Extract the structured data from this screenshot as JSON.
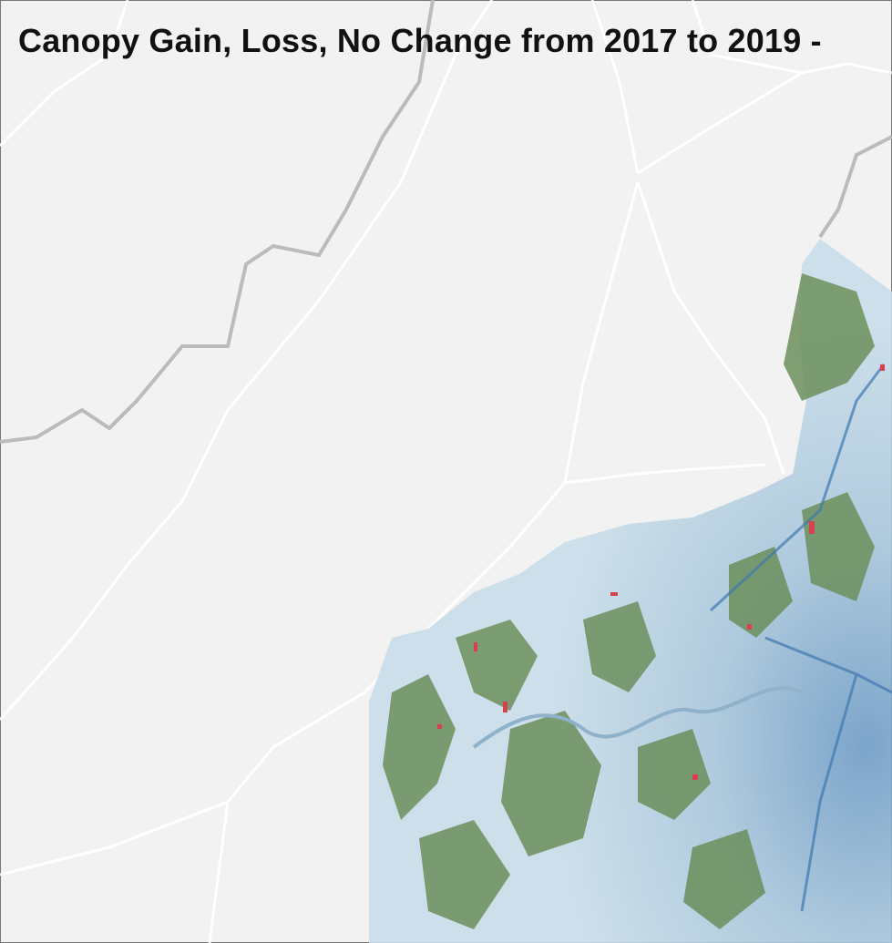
{
  "header": {
    "title": "Canopy Gain, Loss, No Change from 2017 to 2019 -"
  }
}
